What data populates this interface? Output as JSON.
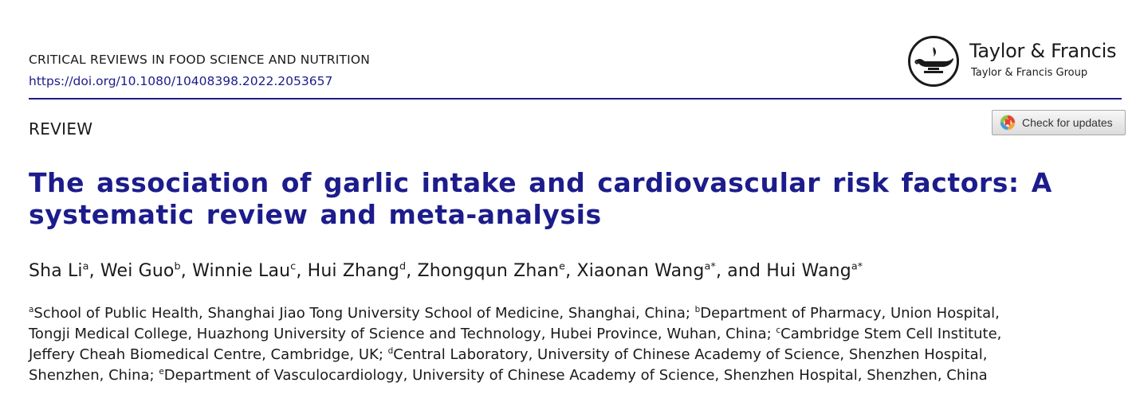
{
  "header": {
    "journal": "CRITICAL REVIEWS IN FOOD SCIENCE AND NUTRITION",
    "doi": "https://doi.org/10.1080/10408398.2022.2053657",
    "publisher": "Taylor & Francis",
    "publisher_group": "Taylor & Francis Group",
    "accent_color": "#1c1c8c"
  },
  "article": {
    "type": "REVIEW",
    "check_updates_label": "Check for updates",
    "title": "The association of garlic intake and cardiovascular risk factors: A systematic review and meta-analysis",
    "authors": [
      {
        "name": "Sha Li",
        "aff": "a",
        "sep": ", "
      },
      {
        "name": "Wei Guo",
        "aff": "b",
        "sep": ", "
      },
      {
        "name": "Winnie Lau",
        "aff": "c",
        "sep": ", "
      },
      {
        "name": "Hui Zhang",
        "aff": "d",
        "sep": ", "
      },
      {
        "name": "Zhongqun Zhan",
        "aff": "e",
        "sep": ", "
      },
      {
        "name": "Xiaonan Wang",
        "aff": "a*",
        "sep": ", and "
      },
      {
        "name": "Hui Wang",
        "aff": "a*",
        "sep": ""
      }
    ],
    "affiliation_lines": [
      [
        {
          "sup": "a",
          "text": "School of Public Health, Shanghai Jiao Tong University School of Medicine, Shanghai, China; "
        },
        {
          "sup": "b",
          "text": "Department of Pharmacy, Union Hospital,"
        }
      ],
      [
        {
          "sup": "",
          "text": "Tongji Medical College, Huazhong University of Science and Technology, Hubei Province, Wuhan, China; "
        },
        {
          "sup": "c",
          "text": "Cambridge Stem Cell Institute,"
        }
      ],
      [
        {
          "sup": "",
          "text": "Jeffery Cheah Biomedical Centre, Cambridge, UK; "
        },
        {
          "sup": "d",
          "text": "Central Laboratory, University of Chinese Academy of Science, Shenzhen Hospital,"
        }
      ],
      [
        {
          "sup": "",
          "text": "Shenzhen, China; "
        },
        {
          "sup": "e",
          "text": "Department of Vasculocardiology, University of Chinese Academy of Science, Shenzhen Hospital, Shenzhen, China"
        }
      ]
    ]
  },
  "icons": {
    "logo": "taylor-francis-lamp-logo",
    "check": "crossmark-icon"
  }
}
